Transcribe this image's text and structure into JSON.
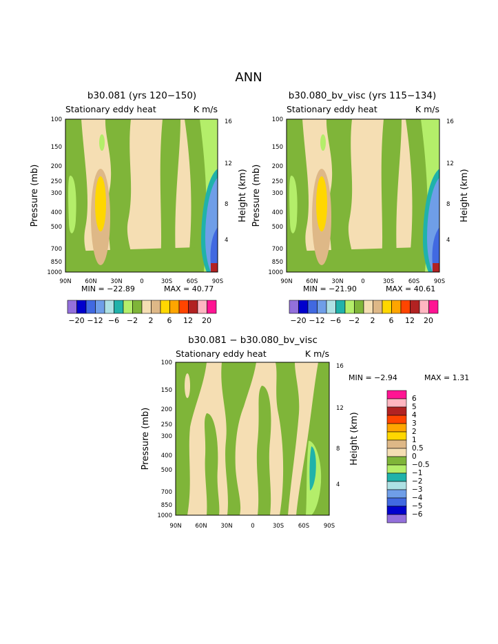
{
  "page_title": "ANN",
  "colors": {
    "levels_top": [
      "#9370db",
      "#0000cd",
      "#4169e1",
      "#6f9ee8",
      "#aee1e4",
      "#20b2aa",
      "#b4ee6a",
      "#7fb539",
      "#f5deb3",
      "#deb887",
      "#ffd700",
      "#ffa500",
      "#ff4500",
      "#b22222",
      "#ffb6c1",
      "#ff1493"
    ],
    "levels_diff": [
      "#9370db",
      "#0000cd",
      "#4169e1",
      "#6f9ee8",
      "#aee1e4",
      "#20b2aa",
      "#b4ee6a",
      "#7fb539",
      "#f5deb3",
      "#deb887",
      "#ffd700",
      "#ffa500",
      "#ff4500",
      "#b22222",
      "#ffb6c1",
      "#ff1493"
    ]
  },
  "chart_data": [
    {
      "type": "heatmap",
      "title": "b30.081 (yrs 120−150)",
      "subtitle_left": "Stationary eddy heat",
      "subtitle_right": "K m/s",
      "ylabel": "Pressure (mb)",
      "y2label": "Height (km)",
      "x_ticks": [
        "90N",
        "60N",
        "30N",
        "0",
        "30S",
        "60S",
        "90S"
      ],
      "y_ticks": [
        "100",
        "150",
        "200",
        "250",
        "300",
        "400",
        "500",
        "700",
        "850",
        "1000"
      ],
      "y2_ticks": [
        "16",
        "12",
        "8",
        "4"
      ],
      "min_label": "MIN = −22.89",
      "max_label": "MAX =  40.77",
      "colorbar_labels": [
        "−20",
        "−12",
        "−6",
        "−2",
        "2",
        "6",
        "12",
        "20"
      ],
      "contour_levels": [
        -20,
        -16,
        -12,
        -8,
        -6,
        -4,
        -2,
        -1,
        1,
        2,
        4,
        6,
        8,
        12,
        16,
        20
      ]
    },
    {
      "type": "heatmap",
      "title": "b30.080_bv_visc (yrs 115−134)",
      "subtitle_left": "Stationary eddy heat",
      "subtitle_right": "K m/s",
      "ylabel": "Pressure (mb)",
      "y2label": "Height (km)",
      "x_ticks": [
        "90N",
        "60N",
        "30N",
        "0",
        "30S",
        "60S",
        "90S"
      ],
      "y_ticks": [
        "100",
        "150",
        "200",
        "250",
        "300",
        "400",
        "500",
        "700",
        "850",
        "1000"
      ],
      "y2_ticks": [
        "16",
        "12",
        "8",
        "4"
      ],
      "min_label": "MIN = −21.90",
      "max_label": "MAX =  40.61",
      "colorbar_labels": [
        "−20",
        "−12",
        "−6",
        "−2",
        "2",
        "6",
        "12",
        "20"
      ],
      "contour_levels": [
        -20,
        -16,
        -12,
        -8,
        -6,
        -4,
        -2,
        -1,
        1,
        2,
        4,
        6,
        8,
        12,
        16,
        20
      ]
    },
    {
      "type": "heatmap",
      "title": "b30.081 − b30.080_bv_visc",
      "subtitle_left": "Stationary eddy heat",
      "subtitle_right": "K m/s",
      "ylabel": "Pressure (mb)",
      "y2label": "Height (km)",
      "x_ticks": [
        "90N",
        "60N",
        "30N",
        "0",
        "30S",
        "60S",
        "90S"
      ],
      "y_ticks": [
        "100",
        "150",
        "200",
        "250",
        "300",
        "400",
        "500",
        "700",
        "850",
        "1000"
      ],
      "y2_ticks": [
        "16",
        "12",
        "8",
        "4"
      ],
      "min_label": "MIN =   −2.94",
      "max_label": "MAX =    1.31",
      "colorbar_labels": [
        "6",
        "5",
        "4",
        "3",
        "2",
        "1",
        "0.5",
        "0",
        "−0.5",
        "−1",
        "−2",
        "−3",
        "−4",
        "−5",
        "−6"
      ],
      "contour_levels": [
        -6,
        -5,
        -4,
        -3,
        -2,
        -1,
        -0.5,
        0,
        0.5,
        1,
        2,
        3,
        4,
        5,
        6
      ]
    }
  ]
}
